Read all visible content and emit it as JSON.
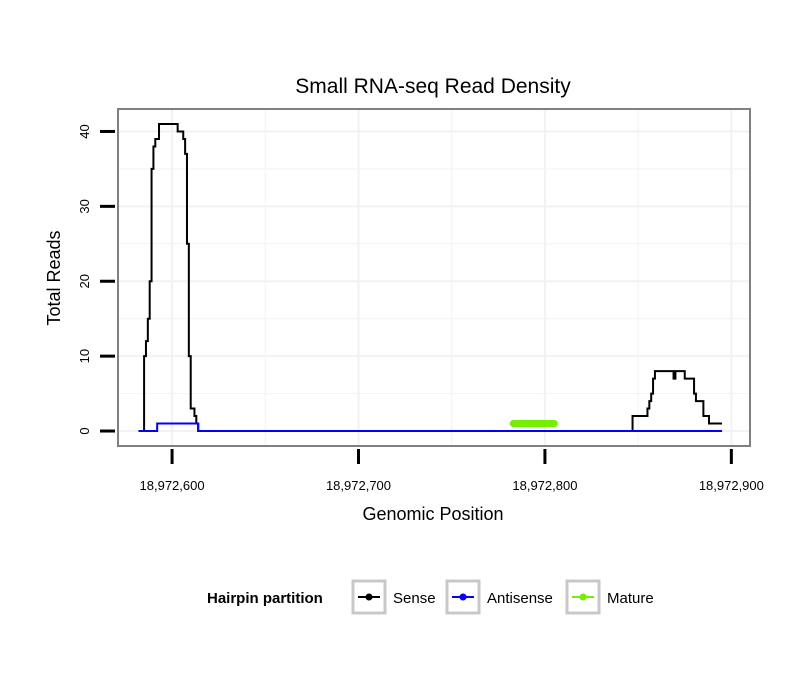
{
  "chart_data": {
    "type": "line",
    "title": "Small RNA-seq Read Density",
    "xlabel": "Genomic Position",
    "ylabel": "Total Reads",
    "xlim": [
      18972571,
      18972910
    ],
    "ylim": [
      -2,
      43
    ],
    "xticks": [
      18972600,
      18972700,
      18972800,
      18972900
    ],
    "xtick_labels": [
      "18,972,600",
      "18,972,700",
      "18,972,800",
      "18,972,900"
    ],
    "yticks": [
      0,
      10,
      20,
      30,
      40
    ],
    "ytick_labels": [
      "0",
      "10",
      "20",
      "30",
      "40"
    ],
    "grid": true,
    "legend": {
      "title": "Hairpin partition",
      "position": "bottom",
      "entries": [
        "Sense",
        "Antisense",
        "Mature"
      ]
    },
    "series": [
      {
        "name": "Sense",
        "color": "#000000",
        "x": [
          18972582,
          18972584,
          18972585,
          18972586,
          18972587,
          18972588,
          18972589,
          18972590,
          18972591,
          18972592,
          18972593,
          18972594,
          18972595,
          18972596,
          18972597,
          18972598,
          18972599,
          18972600,
          18972601,
          18972602,
          18972603,
          18972604,
          18972605,
          18972606,
          18972607,
          18972608,
          18972609,
          18972610,
          18972611,
          18972612,
          18972613,
          18972614,
          18972615,
          18972616,
          18972846,
          18972847,
          18972848,
          18972849,
          18972850,
          18972851,
          18972852,
          18972853,
          18972854,
          18972855,
          18972856,
          18972857,
          18972858,
          18972859,
          18972860,
          18972861,
          18972862,
          18972863,
          18972864,
          18972865,
          18972866,
          18972867,
          18972868,
          18972869,
          18972870,
          18972871,
          18972872,
          18972873,
          18972874,
          18972875,
          18972876,
          18972877,
          18972878,
          18972879,
          18972880,
          18972881,
          18972882,
          18972883,
          18972884,
          18972885,
          18972886,
          18972887,
          18972888,
          18972889,
          18972890,
          18972891,
          18972892,
          18972893,
          18972894,
          18972895
        ],
        "y": [
          0,
          0,
          10,
          12,
          15,
          20,
          35,
          38,
          39,
          39,
          41,
          41,
          41,
          41,
          41,
          41,
          41,
          41,
          41,
          41,
          40,
          40,
          40,
          39,
          37,
          25,
          10,
          3,
          3,
          2,
          1,
          0,
          0,
          0,
          0,
          2,
          2,
          2,
          2,
          2,
          2,
          2,
          2,
          3,
          4,
          5,
          7,
          8,
          8,
          8,
          8,
          8,
          8,
          8,
          8,
          8,
          8,
          7,
          8,
          8,
          8,
          8,
          8,
          7,
          7,
          7,
          7,
          7,
          5,
          4,
          4,
          4,
          4,
          2,
          2,
          2,
          1,
          1,
          1,
          1,
          1,
          1,
          1,
          1
        ]
      },
      {
        "name": "Antisense",
        "color": "#0000ff",
        "x": [
          18972582,
          18972591,
          18972592,
          18972600,
          18972607,
          18972608,
          18972613,
          18972614,
          18972895
        ],
        "y": [
          0,
          0,
          1,
          1,
          1,
          1,
          1,
          0,
          0
        ]
      },
      {
        "name": "Mature",
        "color": "#76ee00",
        "x": [
          18972783,
          18972805
        ],
        "y": [
          1,
          1
        ]
      }
    ]
  }
}
